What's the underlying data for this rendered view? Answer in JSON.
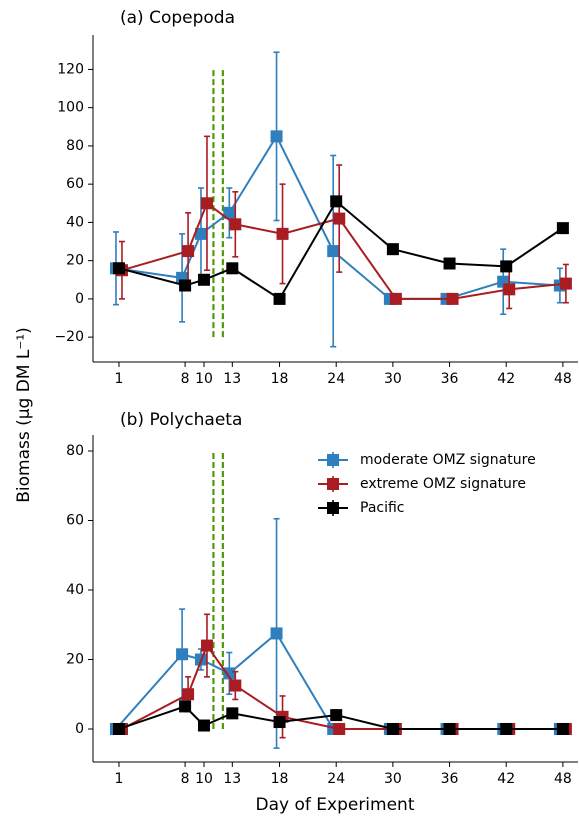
{
  "chart_data": [
    {
      "type": "line",
      "title": "(a)  Copepoda",
      "ylabel": "Biomass (μg DM L⁻¹)",
      "x": [
        1,
        8,
        10,
        13,
        18,
        24,
        30,
        36,
        42,
        48
      ],
      "series": [
        {
          "color": "#2f7fbf",
          "values": [
            16,
            11,
            34,
            45,
            85,
            25,
            0,
            0,
            9,
            7
          ],
          "errors": [
            19,
            23,
            24,
            13,
            44,
            50,
            1,
            1,
            17,
            9
          ]
        },
        {
          "color": "#a81c22",
          "values": [
            15,
            25,
            50,
            39,
            34,
            42,
            0,
            0,
            5,
            8
          ],
          "errors": [
            15,
            20,
            35,
            17,
            26,
            28,
            1,
            1,
            10,
            10
          ]
        },
        {
          "color": "#000000",
          "values": [
            16,
            7,
            10,
            16,
            0,
            51,
            26,
            18.5,
            17,
            37
          ],
          "errors": [
            1,
            1,
            1,
            1,
            1,
            1,
            1,
            1,
            1,
            1
          ]
        }
      ],
      "xlim": [
        -1.75,
        49.6
      ],
      "ylim": [
        -33,
        138
      ],
      "xticks": [
        1,
        8,
        10,
        13,
        18,
        24,
        30,
        36,
        42,
        48
      ],
      "yticks": [
        {
          "value": -20,
          "label": "−20"
        },
        0,
        20,
        40,
        60,
        80,
        100,
        120
      ],
      "vlines": {
        "x": [
          11,
          12
        ],
        "y": [
          -20,
          120
        ],
        "color": "#4f9a0a"
      }
    },
    {
      "type": "line",
      "title": "(b)  Polychaeta",
      "xlabel": "Day of Experiment",
      "legend": "upper right",
      "x": [
        1,
        8,
        10,
        13,
        18,
        24,
        30,
        36,
        42,
        48
      ],
      "series": [
        {
          "name": "moderate OMZ signature",
          "color": "#2f7fbf",
          "values": [
            0,
            21.5,
            20,
            16,
            27.5,
            0,
            0,
            0,
            0,
            0
          ],
          "errors": [
            1,
            13,
            3,
            6,
            33,
            0.5,
            0.5,
            0.5,
            0.5,
            0.5
          ]
        },
        {
          "name": "extreme OMZ signature",
          "color": "#a81c22",
          "values": [
            0,
            10,
            24,
            12.5,
            3.5,
            0,
            0,
            0,
            0,
            0
          ],
          "errors": [
            0.5,
            5,
            9,
            4,
            6,
            0.5,
            0.5,
            0.5,
            0.5,
            0.5
          ]
        },
        {
          "name": "Pacific",
          "color": "#000000",
          "values": [
            0,
            6.5,
            1,
            4.5,
            2,
            4,
            0,
            0,
            0,
            0
          ],
          "errors": [
            0.5,
            0.5,
            0.5,
            0.5,
            0.5,
            0.5,
            0.5,
            0.5,
            0.5,
            0.5
          ]
        }
      ],
      "xlim": [
        -1.75,
        49.6
      ],
      "ylim": [
        -9.5,
        84.6
      ],
      "xticks": [
        1,
        8,
        10,
        13,
        18,
        24,
        30,
        36,
        42,
        48
      ],
      "yticks": [
        0,
        20,
        40,
        60,
        80
      ],
      "vlines": {
        "x": [
          11,
          12
        ],
        "y": [
          0,
          80
        ],
        "color": "#4f9a0a"
      }
    }
  ]
}
